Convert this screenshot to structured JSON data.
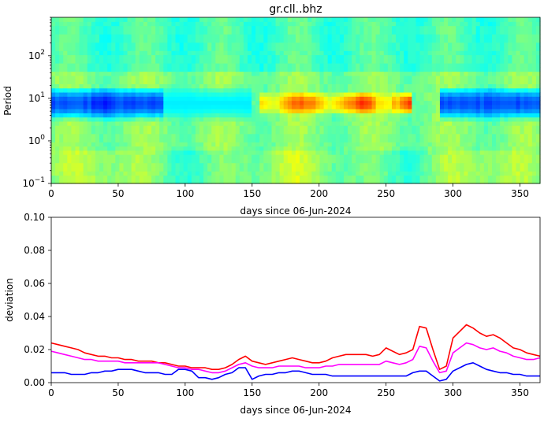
{
  "chart_data": [
    {
      "type": "heatmap",
      "title": "gr.cll..bhz",
      "xlabel": "days since 06-Jun-2024",
      "ylabel": "Period",
      "xlim": [
        0,
        365
      ],
      "ylim": [
        0.1,
        800
      ],
      "yscale": "log",
      "x_ticks": [
        0,
        50,
        100,
        150,
        200,
        250,
        300,
        350
      ],
      "x_tick_labels": [
        "0",
        "50",
        "100",
        "150",
        "200",
        "250",
        "300",
        "350"
      ],
      "y_ticks": [
        0.1,
        1,
        10,
        100
      ],
      "y_tick_labels": [
        "10",
        "10",
        "10",
        "10"
      ],
      "y_tick_exponents": [
        "−1",
        "0",
        "1",
        "2"
      ],
      "colormap": "jet",
      "features": [
        {
          "x_range": [
            0,
            85
          ],
          "period_range": [
            3,
            20
          ],
          "level": "low"
        },
        {
          "x_range": [
            85,
            150
          ],
          "period_range": [
            3,
            20
          ],
          "level": "low-moderate"
        },
        {
          "x_range": [
            155,
            270
          ],
          "period_range": [
            4,
            15
          ],
          "level": "high"
        },
        {
          "x_range": [
            290,
            365
          ],
          "period_range": [
            3,
            20
          ],
          "level": "low"
        }
      ]
    },
    {
      "type": "line",
      "title": "",
      "xlabel": "days since 06-Jun-2024",
      "ylabel": "deviation",
      "xlim": [
        0,
        365
      ],
      "ylim": [
        0,
        0.1
      ],
      "x_ticks": [
        0,
        50,
        100,
        150,
        200,
        250,
        300,
        350
      ],
      "x_tick_labels": [
        "0",
        "50",
        "100",
        "150",
        "200",
        "250",
        "300",
        "350"
      ],
      "y_ticks": [
        0,
        0.02,
        0.04,
        0.06,
        0.08,
        0.1
      ],
      "y_tick_labels": [
        "0.00",
        "0.02",
        "0.04",
        "0.06",
        "0.08",
        "0.10"
      ],
      "x": [
        0,
        5,
        10,
        15,
        20,
        25,
        30,
        35,
        40,
        45,
        50,
        55,
        60,
        65,
        70,
        75,
        80,
        85,
        90,
        95,
        100,
        105,
        110,
        115,
        120,
        125,
        130,
        135,
        140,
        145,
        150,
        155,
        160,
        165,
        170,
        175,
        180,
        185,
        190,
        195,
        200,
        205,
        210,
        215,
        220,
        225,
        230,
        235,
        240,
        245,
        250,
        255,
        260,
        265,
        270,
        275,
        280,
        285,
        290,
        295,
        300,
        305,
        310,
        315,
        320,
        325,
        330,
        335,
        340,
        345,
        350,
        355,
        360,
        365
      ],
      "series": [
        {
          "color": "#ff0000",
          "values": [
            0.024,
            0.023,
            0.022,
            0.021,
            0.02,
            0.018,
            0.017,
            0.016,
            0.016,
            0.015,
            0.015,
            0.014,
            0.014,
            0.013,
            0.013,
            0.013,
            0.012,
            0.012,
            0.011,
            0.01,
            0.01,
            0.009,
            0.009,
            0.009,
            0.008,
            0.008,
            0.009,
            0.011,
            0.014,
            0.016,
            0.013,
            0.012,
            0.011,
            0.012,
            0.013,
            0.014,
            0.015,
            0.014,
            0.013,
            0.012,
            0.012,
            0.013,
            0.015,
            0.016,
            0.017,
            0.017,
            0.017,
            0.017,
            0.016,
            0.017,
            0.021,
            0.019,
            0.017,
            0.018,
            0.02,
            0.034,
            0.033,
            0.02,
            0.008,
            0.01,
            0.027,
            0.031,
            0.035,
            0.033,
            0.03,
            0.028,
            0.029,
            0.027,
            0.024,
            0.021,
            0.02,
            0.018,
            0.017,
            0.016
          ]
        },
        {
          "color": "#ff00ff",
          "values": [
            0.019,
            0.018,
            0.017,
            0.016,
            0.015,
            0.014,
            0.014,
            0.013,
            0.013,
            0.013,
            0.013,
            0.012,
            0.012,
            0.012,
            0.012,
            0.012,
            0.012,
            0.011,
            0.01,
            0.009,
            0.009,
            0.008,
            0.008,
            0.007,
            0.006,
            0.006,
            0.007,
            0.009,
            0.011,
            0.012,
            0.01,
            0.009,
            0.009,
            0.009,
            0.01,
            0.01,
            0.01,
            0.01,
            0.009,
            0.009,
            0.009,
            0.01,
            0.01,
            0.011,
            0.011,
            0.011,
            0.011,
            0.011,
            0.011,
            0.011,
            0.013,
            0.012,
            0.011,
            0.012,
            0.014,
            0.022,
            0.021,
            0.013,
            0.006,
            0.007,
            0.018,
            0.021,
            0.024,
            0.023,
            0.021,
            0.02,
            0.021,
            0.019,
            0.018,
            0.016,
            0.015,
            0.014,
            0.014,
            0.015
          ]
        },
        {
          "color": "#0000ff",
          "values": [
            0.006,
            0.006,
            0.006,
            0.005,
            0.005,
            0.005,
            0.006,
            0.006,
            0.007,
            0.007,
            0.008,
            0.008,
            0.008,
            0.007,
            0.006,
            0.006,
            0.006,
            0.005,
            0.005,
            0.008,
            0.008,
            0.007,
            0.003,
            0.003,
            0.002,
            0.003,
            0.005,
            0.006,
            0.009,
            0.009,
            0.002,
            0.004,
            0.005,
            0.005,
            0.006,
            0.006,
            0.007,
            0.007,
            0.006,
            0.005,
            0.005,
            0.005,
            0.004,
            0.004,
            0.004,
            0.004,
            0.004,
            0.004,
            0.004,
            0.004,
            0.004,
            0.004,
            0.004,
            0.004,
            0.006,
            0.007,
            0.007,
            0.004,
            0.001,
            0.002,
            0.007,
            0.009,
            0.011,
            0.012,
            0.01,
            0.008,
            0.007,
            0.006,
            0.006,
            0.005,
            0.005,
            0.004,
            0.004,
            0.004
          ]
        }
      ]
    }
  ]
}
